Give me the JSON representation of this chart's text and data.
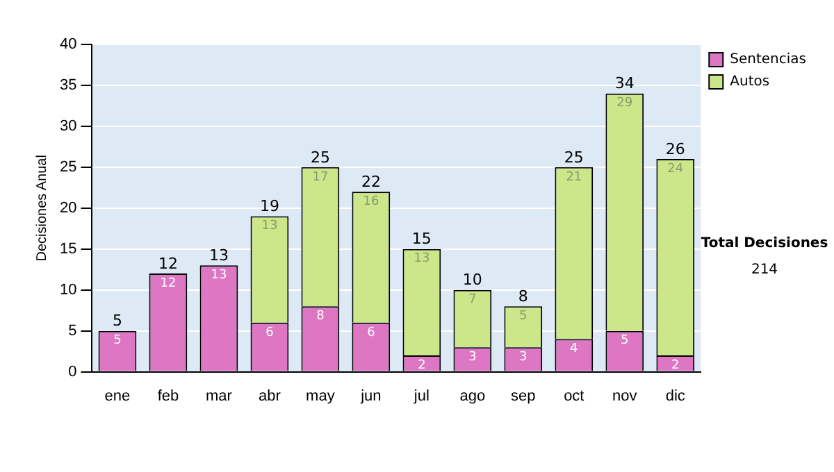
{
  "chart_data": {
    "type": "bar",
    "stacked": true,
    "ylabel": "Decisiones Anual",
    "categories": [
      "ene",
      "feb",
      "mar",
      "abr",
      "may",
      "jun",
      "jul",
      "ago",
      "sep",
      "oct",
      "nov",
      "dic"
    ],
    "series": [
      {
        "name": "Sentencias",
        "color": "#dd77c4",
        "values": [
          5,
          12,
          13,
          6,
          8,
          6,
          2,
          3,
          3,
          4,
          5,
          2
        ],
        "value_labels": [
          "5",
          "12",
          "13",
          "6",
          "8",
          "6",
          "2",
          "3",
          "3",
          "4",
          "5",
          "2"
        ]
      },
      {
        "name": "Autos",
        "color": "#cce68a",
        "values": [
          0,
          0,
          0,
          13,
          17,
          16,
          13,
          7,
          5,
          21,
          29,
          24
        ],
        "value_labels": [
          null,
          null,
          null,
          "13",
          "17",
          "16",
          "13",
          "7",
          "5",
          "21",
          "29",
          "24"
        ]
      }
    ],
    "totals": [
      "5",
      "12",
      "13",
      "19",
      "25",
      "22",
      "15",
      "10",
      "8",
      "25",
      "34",
      "26"
    ],
    "ylim": [
      0,
      40
    ],
    "yticks": [
      0,
      5,
      10,
      15,
      20,
      25,
      30,
      35,
      40
    ],
    "grid": "y",
    "legend": "right",
    "annotations": [
      "Total Decisiones",
      "214"
    ]
  }
}
